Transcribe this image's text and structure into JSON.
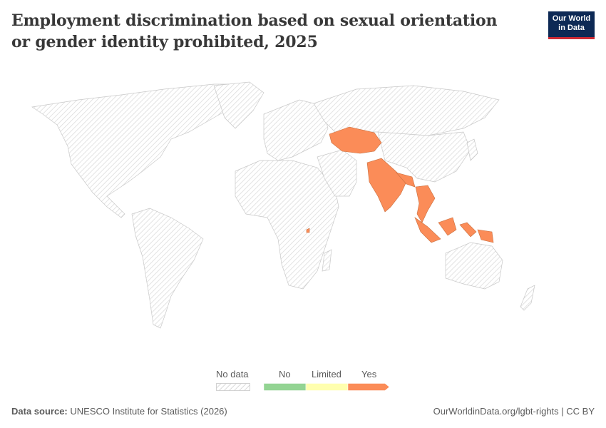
{
  "title": "Employment discrimination based on sexual orientation or gender identity prohibited, 2025",
  "logo": {
    "line1": "Our World",
    "line2": "in Data",
    "bg": "#0d2955",
    "accent": "#cc2a34"
  },
  "legend": {
    "no_data": "No data",
    "categories": [
      {
        "label": "No",
        "color": "#93d493"
      },
      {
        "label": "Limited",
        "color": "#ffffaf"
      },
      {
        "label": "Yes",
        "color": "#fb8c58"
      }
    ]
  },
  "map_data": {
    "highlighted_category": "Yes",
    "countries_yes": [
      "Kazakhstan",
      "Kyrgyzstan",
      "Uzbekistan",
      "Turkmenistan",
      "Tajikistan",
      "India",
      "Bangladesh",
      "Nepal",
      "Bhutan",
      "Myanmar",
      "Thailand",
      "Laos",
      "Cambodia",
      "Vietnam",
      "Malaysia",
      "Indonesia",
      "Timor-Leste",
      "Papua New Guinea",
      "Rwanda"
    ],
    "other_countries": "No data"
  },
  "footer": {
    "source_label": "Data source:",
    "source_text": "UNESCO Institute for Statistics (2026)",
    "url": "OurWorldinData.org/lgbt-rights | CC BY"
  }
}
